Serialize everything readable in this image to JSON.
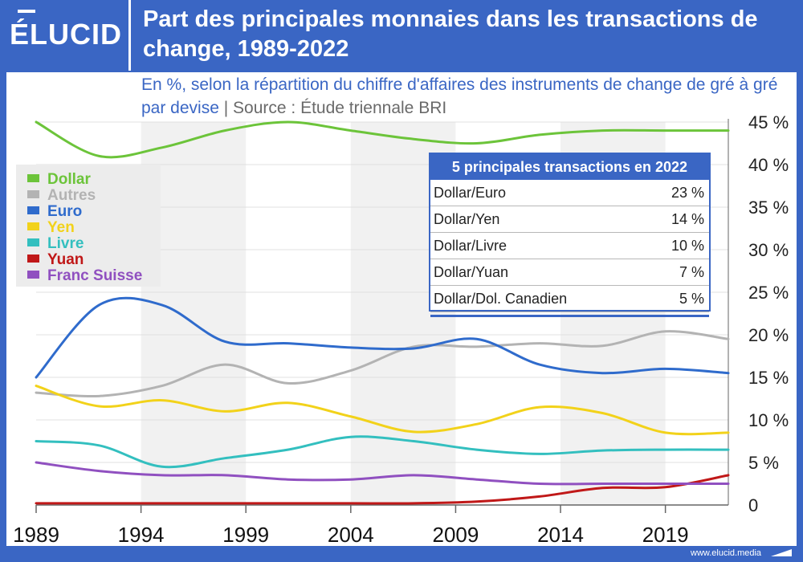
{
  "header": {
    "logo": "ÉLUCID",
    "title": "Part des principales monnaies dans les transactions de change, 1989-2022",
    "subtitle": "En %, selon la répartition du chiffre d'affaires des instruments de change de gré à gré par devise",
    "source_sep": "|",
    "source": "Source : Étude triennale BRI"
  },
  "footer": {
    "url": "www.elucid.media"
  },
  "colors": {
    "accent": "#3a66c4",
    "dollar": "#6cc43a",
    "autres": "#b3b3b3",
    "euro": "#2f6bcc",
    "yen": "#f2d21a",
    "livre": "#33bfbf",
    "yuan": "#c01818",
    "franc_suisse": "#9050c0"
  },
  "chart_data": {
    "type": "line",
    "title": "Part des principales monnaies dans les transactions de change, 1989-2022",
    "ylabel": "%",
    "xlim": [
      1989,
      2022
    ],
    "ylim": [
      0,
      45
    ],
    "yticks": [
      0,
      5,
      10,
      15,
      20,
      25,
      30,
      35,
      40,
      45
    ],
    "ytick_labels": [
      "0",
      "5 %",
      "10 %",
      "15 %",
      "20 %",
      "25 %",
      "30 %",
      "35 %",
      "40 %",
      "45 %"
    ],
    "xticks": [
      1989,
      1994,
      1999,
      2004,
      2009,
      2014,
      2019
    ],
    "xtick_labels": [
      "1989",
      "1994",
      "1999",
      "2004",
      "2009",
      "2014",
      "2019"
    ],
    "x": [
      1989,
      1992,
      1995,
      1998,
      2001,
      2004,
      2007,
      2010,
      2013,
      2016,
      2019,
      2022
    ],
    "series": [
      {
        "name": "Dollar",
        "key": "dollar",
        "values": [
          45,
          41,
          42,
          44,
          45,
          44,
          43,
          42.5,
          43.5,
          44,
          44,
          44
        ]
      },
      {
        "name": "Autres",
        "key": "autres",
        "values": [
          13.2,
          12.8,
          14,
          16.5,
          14.3,
          15.8,
          18.6,
          18.6,
          19,
          18.7,
          20.4,
          19.5
        ]
      },
      {
        "name": "Euro",
        "key": "euro",
        "values": [
          15,
          23.5,
          23.5,
          19.2,
          19,
          18.5,
          18.4,
          19.5,
          16.5,
          15.5,
          16,
          15.5
        ]
      },
      {
        "name": "Yen",
        "key": "yen",
        "values": [
          14,
          11.6,
          12.3,
          11,
          12,
          10.4,
          8.6,
          9.5,
          11.5,
          10.8,
          8.5,
          8.5
        ]
      },
      {
        "name": "Livre",
        "key": "livre",
        "values": [
          7.5,
          7,
          4.5,
          5.5,
          6.5,
          8,
          7.5,
          6.5,
          6,
          6.4,
          6.5,
          6.5
        ]
      },
      {
        "name": "Yuan",
        "key": "yuan",
        "values": [
          0.2,
          0.2,
          0.2,
          0.2,
          0.2,
          0.2,
          0.2,
          0.4,
          1,
          2,
          2.1,
          3.5
        ]
      },
      {
        "name": "Franc Suisse",
        "key": "franc_suisse",
        "values": [
          5,
          4,
          3.5,
          3.5,
          3,
          3,
          3.5,
          3,
          2.5,
          2.5,
          2.5,
          2.5
        ]
      }
    ]
  },
  "legend": [
    {
      "label": "Dollar",
      "key": "dollar"
    },
    {
      "label": "Autres",
      "key": "autres"
    },
    {
      "label": "Euro",
      "key": "euro"
    },
    {
      "label": "Yen",
      "key": "yen"
    },
    {
      "label": "Livre",
      "key": "livre"
    },
    {
      "label": "Yuan",
      "key": "yuan"
    },
    {
      "label": "Franc Suisse",
      "key": "franc_suisse"
    }
  ],
  "table": {
    "title": "5 principales transactions en 2022",
    "rows": [
      {
        "pair": "Dollar/Euro",
        "pct": "23 %"
      },
      {
        "pair": "Dollar/Yen",
        "pct": "14 %"
      },
      {
        "pair": "Dollar/Livre",
        "pct": "10 %"
      },
      {
        "pair": "Dollar/Yuan",
        "pct": "7 %"
      },
      {
        "pair": "Dollar/Dol. Canadien",
        "pct": "5 %"
      }
    ]
  }
}
